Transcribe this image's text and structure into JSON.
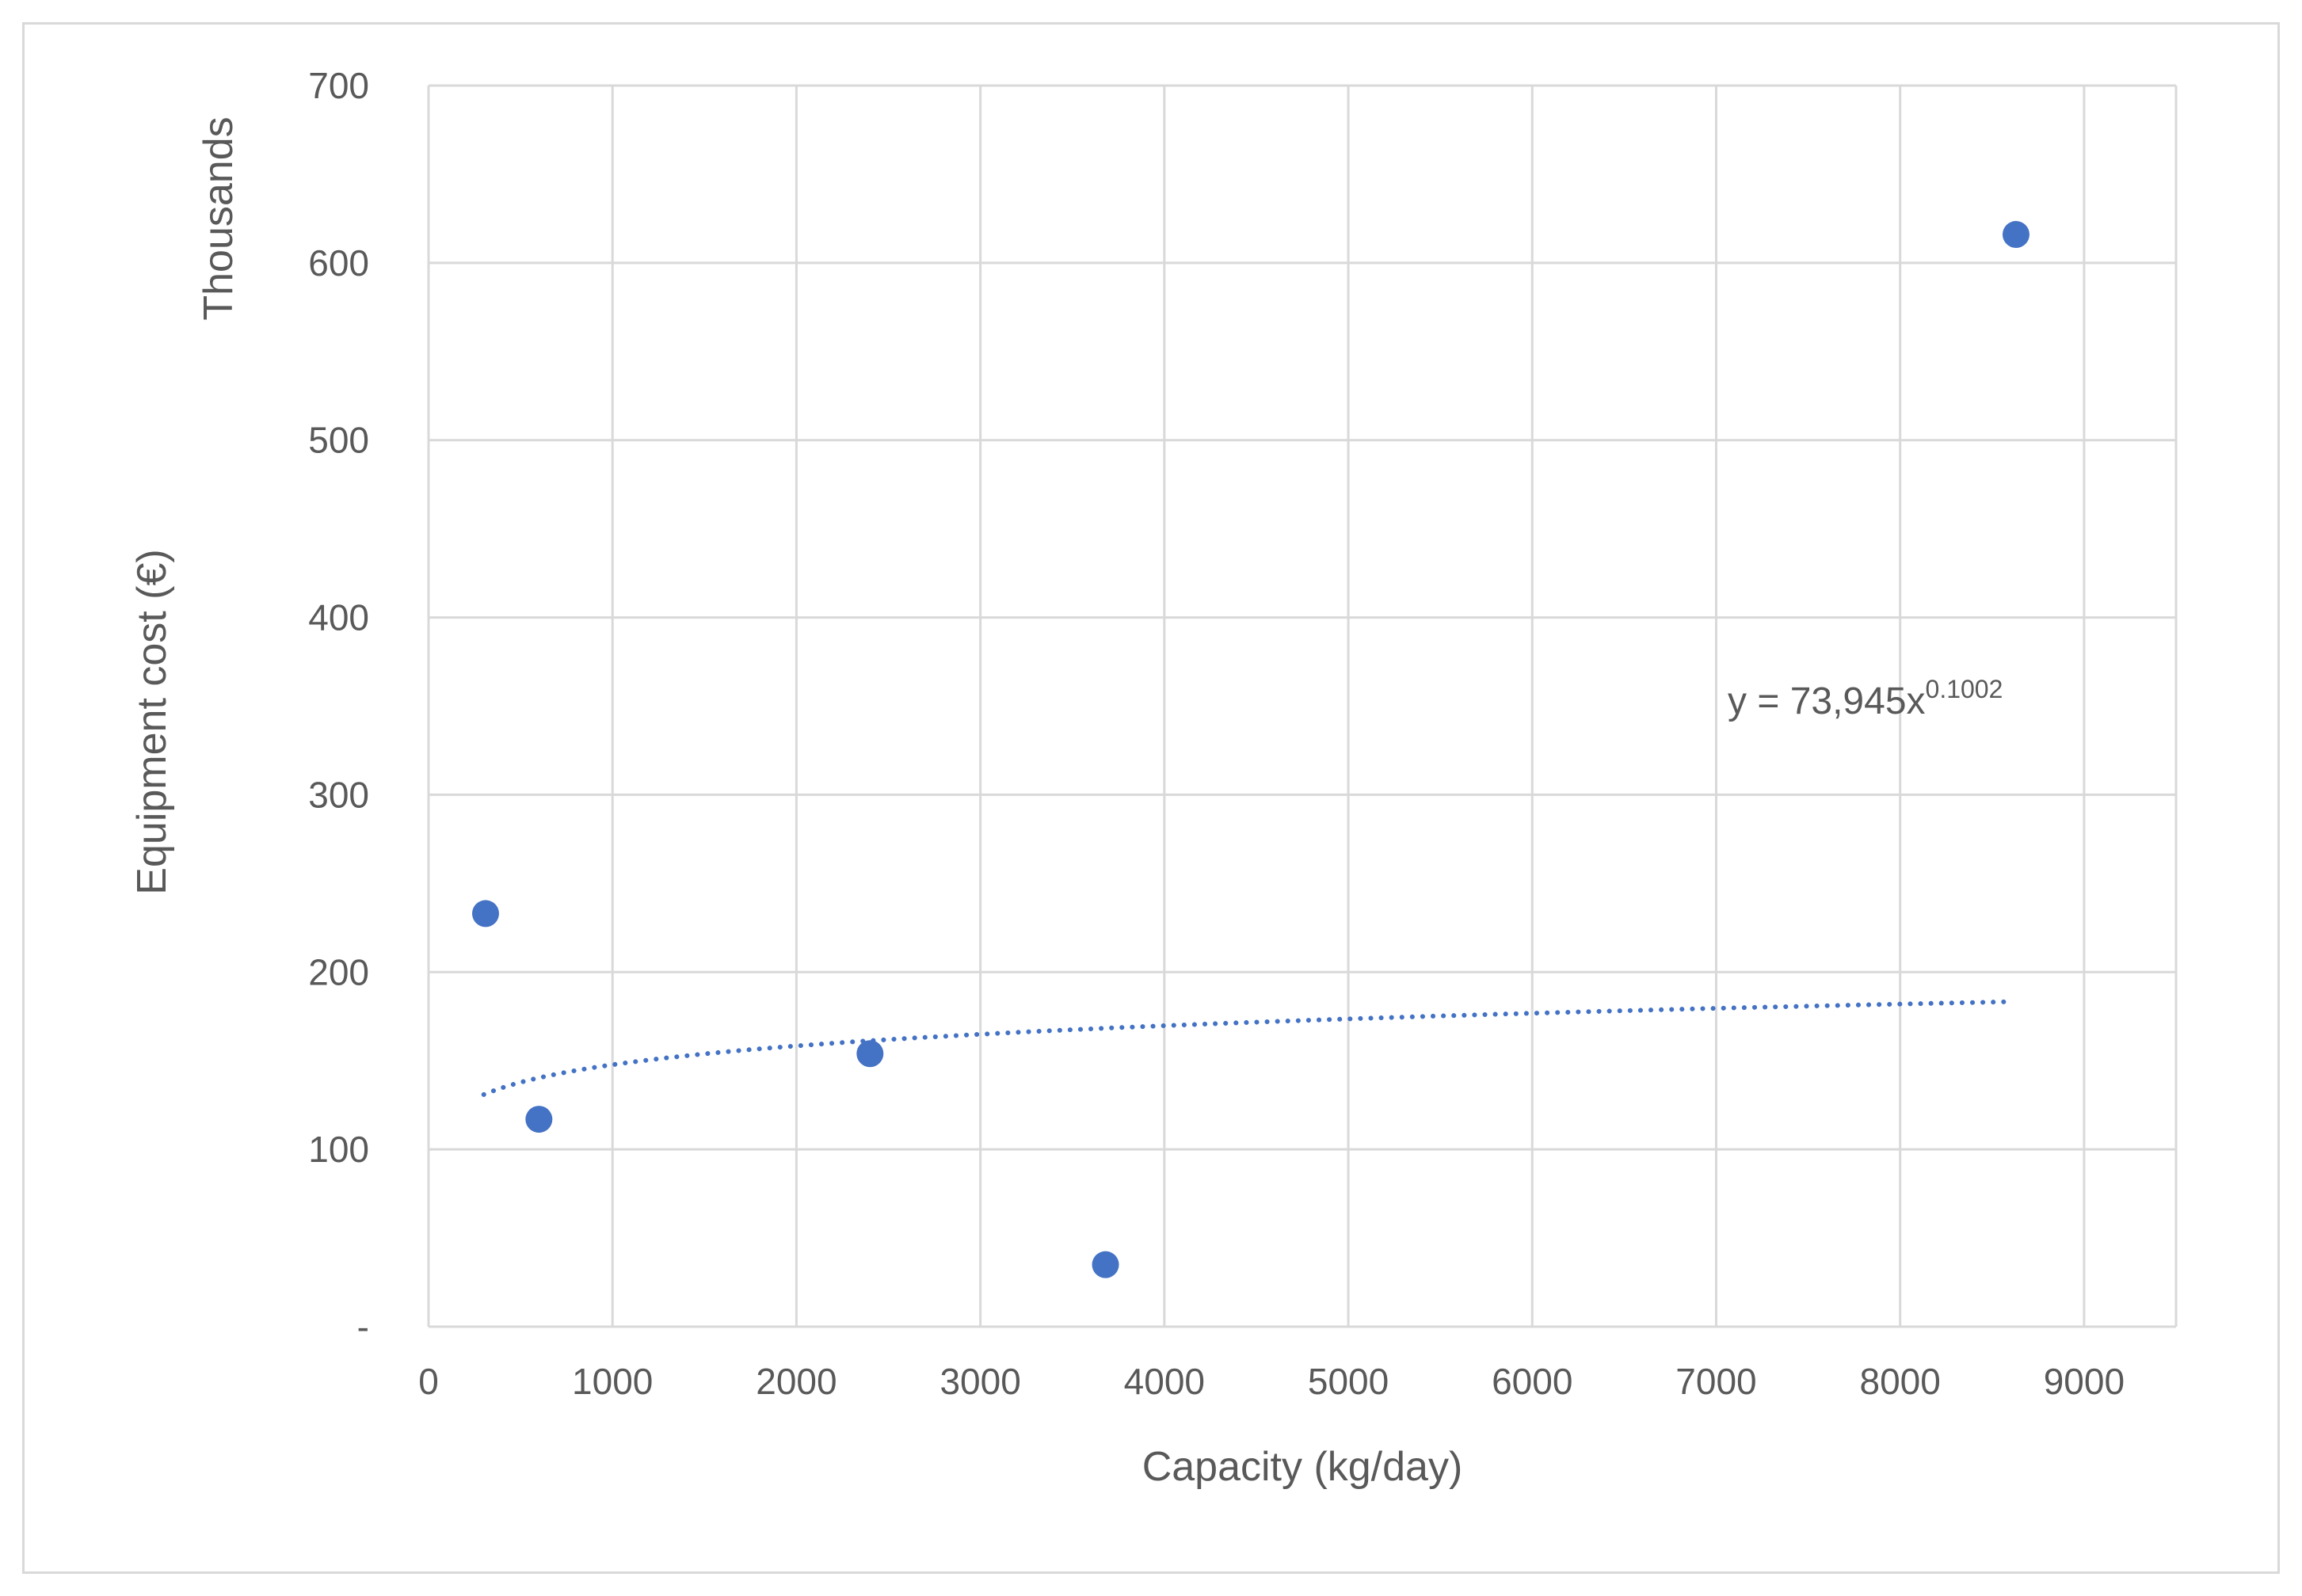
{
  "chart_data": {
    "type": "scatter",
    "title": "",
    "xlabel": "Capacity (kg/day)",
    "ylabel": "Equipment cost (€)",
    "ylabel_units": "Thousands",
    "xlim": [
      0,
      9500
    ],
    "ylim": [
      0,
      700
    ],
    "x_ticks": [
      0,
      1000,
      2000,
      3000,
      4000,
      5000,
      6000,
      7000,
      8000,
      9000
    ],
    "x_tick_labels": [
      "0",
      "1000",
      "2000",
      "3000",
      "4000",
      "5000",
      "6000",
      "7000",
      "8000",
      "9000"
    ],
    "y_ticks": [
      0,
      100,
      200,
      300,
      400,
      500,
      600,
      700
    ],
    "y_tick_labels": [
      "-",
      "100",
      "200",
      "300",
      "400",
      "500",
      "600",
      "700"
    ],
    "grid": true,
    "series": [
      {
        "name": "Equipment cost",
        "color": "#4472c4",
        "points": [
          {
            "x": 310,
            "y": 233
          },
          {
            "x": 600,
            "y": 117
          },
          {
            "x": 2400,
            "y": 154
          },
          {
            "x": 3680,
            "y": 35
          },
          {
            "x": 8630,
            "y": 616
          }
        ]
      }
    ],
    "trendline": {
      "type": "power",
      "coefficient": 73.945,
      "exponent": 0.1002,
      "x_range": [
        300,
        8600
      ],
      "color": "#4472c4",
      "style": "dotted",
      "equation_base": "y = 73,945x",
      "equation_exponent": "0.1002"
    }
  }
}
